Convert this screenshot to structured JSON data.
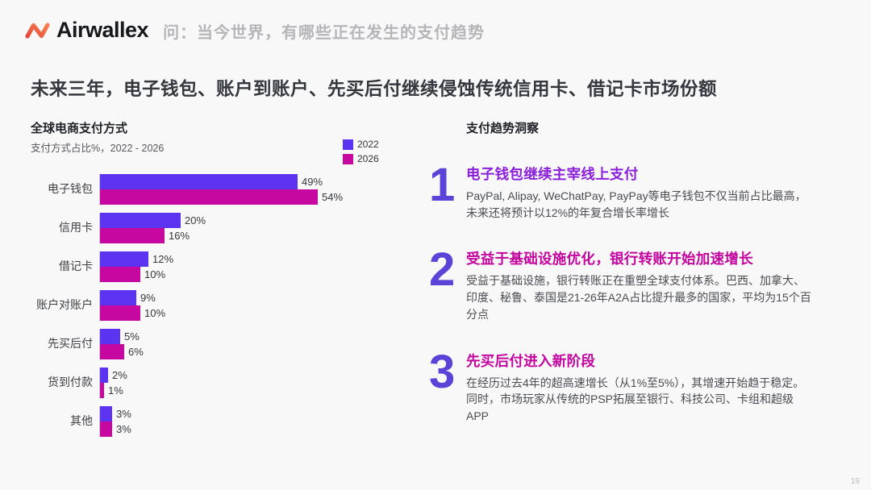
{
  "header": {
    "brand": "Airwallex",
    "question": "问：当今世界，有哪些正在发生的支付趋势"
  },
  "title": "未来三年，电子钱包、账户到账户、先买后付继续侵蚀传统信用卡、借记卡市场份额",
  "chart_data": {
    "type": "bar",
    "orientation": "horizontal",
    "title": "全球电商支付方式",
    "subtitle": "支付方式占比%，2022 - 2026",
    "categories": [
      "电子钱包",
      "信用卡",
      "借记卡",
      "账户对账户",
      "先买后付",
      "货到付款",
      "其他"
    ],
    "series": [
      {
        "name": "2022",
        "color": "#5c33f0",
        "values": [
          49,
          20,
          12,
          9,
          5,
          2,
          3
        ]
      },
      {
        "name": "2026",
        "color": "#c607a0",
        "values": [
          54,
          16,
          10,
          10,
          6,
          1,
          3
        ]
      }
    ],
    "value_suffix": "%",
    "xlim": [
      0,
      60
    ],
    "legend_position": "top-right",
    "grid": false
  },
  "insights": {
    "header": "支付趋势洞察",
    "number_color": "#5b43d8",
    "items": [
      {
        "number": "1",
        "title": "电子钱包继续主宰线上支付",
        "title_color": "#8b1fdb",
        "body": "PayPal, Alipay, WeChatPay, PayPay等电子钱包不仅当前占比最高，未来还将预计以12%的年复合增长率增长"
      },
      {
        "number": "2",
        "title": "受益于基础设施优化，银行转账开始加速增长",
        "title_color": "#c4049e",
        "body": "受益于基础设施，银行转账正在重塑全球支付体系。巴西、加拿大、印度、秘鲁、泰国是21-26年A2A占比提升最多的国家，平均为15个百分点"
      },
      {
        "number": "3",
        "title": "先买后付进入新阶段",
        "title_color": "#c4049e",
        "body": "在经历过去4年的超高速增长（从1%至5%），其增速开始趋于稳定。同时，市场玩家从传统的PSP拓展至银行、科技公司、卡组和超级APP"
      }
    ]
  },
  "page": {
    "number": "19"
  }
}
